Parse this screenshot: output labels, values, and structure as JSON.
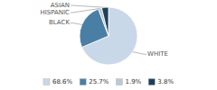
{
  "chart_data": {
    "type": "pie",
    "categories": [
      "WHITE",
      "BLACK",
      "HISPANIC",
      "ASIAN"
    ],
    "values": [
      68.6,
      25.7,
      1.9,
      3.8
    ],
    "value_labels": [
      "68.6%",
      "25.7%",
      "1.9%",
      "3.8%"
    ],
    "colors": [
      "#c8d8e8",
      "#4a7fa5",
      "#b8cad6",
      "#1e3f5a"
    ],
    "legend": "bottom"
  }
}
